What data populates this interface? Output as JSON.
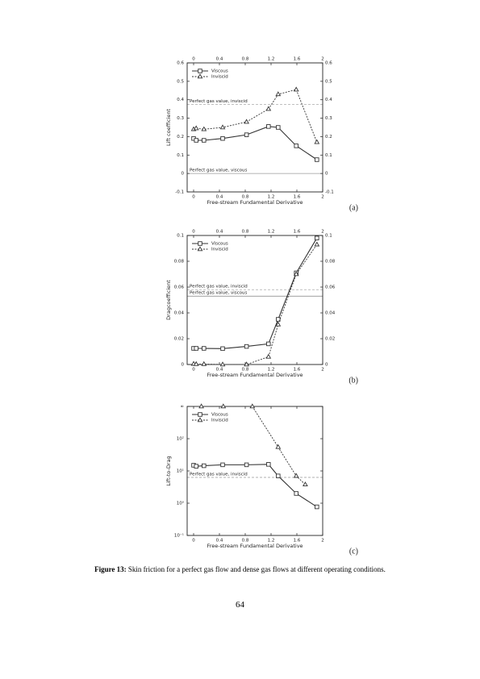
{
  "chart_data": [
    {
      "type": "line",
      "panel_label": "(a)",
      "xlabel": "Free-stream Fundamental Derivative",
      "ylabel": "Lift coefficient",
      "xlim": [
        -0.1,
        2
      ],
      "xticks": [
        0,
        0.4,
        0.8,
        1.2,
        1.6,
        2
      ],
      "ylim": [
        -0.1,
        0.6
      ],
      "yticks": [
        -0.1,
        0,
        0.1,
        0.2,
        0.3,
        0.4,
        0.5,
        0.6
      ],
      "ylog": false,
      "mirror_labels": true,
      "legend": "upper left",
      "series": [
        {
          "name": "Viscous",
          "color": "#333333",
          "style": "solid",
          "marker": "square",
          "x": [
            0,
            0.04,
            0.16,
            0.45,
            0.82,
            1.16,
            1.31,
            1.59,
            1.91
          ],
          "values": [
            0.19,
            0.18,
            0.18,
            0.19,
            0.21,
            0.255,
            0.25,
            0.15,
            0.075
          ]
        },
        {
          "name": "Inviscid",
          "color": "#333333",
          "style": "dashed",
          "marker": "triangle",
          "x": [
            0,
            0.04,
            0.16,
            0.45,
            0.82,
            1.16,
            1.31,
            1.59,
            1.91
          ],
          "values": [
            0.24,
            0.245,
            0.24,
            0.25,
            0.28,
            0.35,
            0.43,
            0.455,
            0.17
          ]
        }
      ],
      "reference_lines": [
        {
          "label": "Perfect gas value, inviscid",
          "value": 0.375,
          "color": "#999999"
        },
        {
          "label": "Perfect gas value, viscous",
          "value": 0,
          "color": "#999999"
        }
      ]
    },
    {
      "type": "line",
      "panel_label": "(b)",
      "xlabel": "Free-stream Fundamental Derivative",
      "ylabel": "Dragcoefficient",
      "xlim": [
        -0.1,
        2
      ],
      "xticks": [
        0,
        0.4,
        0.8,
        1.2,
        1.6,
        2
      ],
      "ylim": [
        0,
        0.1
      ],
      "yticks": [
        0,
        0.02,
        0.04,
        0.06,
        0.08,
        0.1
      ],
      "ylog": false,
      "mirror_labels": true,
      "legend": "upper left",
      "series": [
        {
          "name": "Viscous",
          "color": "#333333",
          "style": "solid",
          "marker": "square",
          "x": [
            0,
            0.04,
            0.16,
            0.45,
            0.82,
            1.16,
            1.31,
            1.59,
            1.91
          ],
          "values": [
            0.0125,
            0.0125,
            0.0125,
            0.0123,
            0.014,
            0.016,
            0.035,
            0.071,
            0.098
          ]
        },
        {
          "name": "Inviscid",
          "color": "#333333",
          "style": "dashed",
          "marker": "triangle",
          "x": [
            0,
            0.04,
            0.16,
            0.45,
            0.82,
            1.16,
            1.31,
            1.59,
            1.91
          ],
          "values": [
            0.0005,
            0.0003,
            0.0003,
            0,
            0,
            0.006,
            0.031,
            0.07,
            0.093
          ]
        }
      ],
      "reference_lines": [
        {
          "label": "Perfect gas value, inviscid",
          "value": 0.058,
          "color": "#999999"
        },
        {
          "label": "Perfect gas value, viscous",
          "value": 0.053,
          "color": "#666666"
        }
      ]
    },
    {
      "type": "line",
      "panel_label": "(c)",
      "xlabel": "Free-stream Fundamental Derivative",
      "ylabel": "Lift-to-Drag",
      "xlim": [
        -0.1,
        2
      ],
      "xticks": [
        0,
        0.4,
        0.8,
        1.2,
        1.6,
        2
      ],
      "ylim": [
        0.1,
        1000
      ],
      "yticks": [
        {
          "value": 0.1,
          "label": "10⁻¹"
        },
        {
          "value": 1,
          "label": "10⁰"
        },
        {
          "value": 10,
          "label": "10¹"
        },
        {
          "value": 100,
          "label": "10²"
        },
        {
          "value": 1000,
          "label": "∞"
        }
      ],
      "ylog": true,
      "mirror_labels": false,
      "legend": "upper left",
      "series": [
        {
          "name": "Viscous",
          "color": "#333333",
          "style": "solid",
          "marker": "square",
          "x": [
            0,
            0.04,
            0.16,
            0.45,
            0.82,
            1.16,
            1.31,
            1.59,
            1.91
          ],
          "values": [
            15,
            14,
            14.5,
            15.5,
            15.5,
            16,
            7,
            2,
            0.77
          ]
        },
        {
          "name": "Inviscid",
          "color": "#333333",
          "style": "dashed",
          "marker": "triangle",
          "x": [
            0.12,
            0.46,
            0.91,
            1.31,
            1.59,
            1.73
          ],
          "values": [
            1000,
            1000,
            1000,
            55,
            7,
            3.8
          ]
        }
      ],
      "reference_lines": [
        {
          "label": "Perfect gas value, inviscid",
          "value": 6.3,
          "color": "#999999"
        }
      ]
    }
  ],
  "caption": {
    "label": "Figure 13:",
    "text": "Skin friction for a perfect gas flow and dense gas flows at different operating conditions."
  },
  "page_number": "64"
}
